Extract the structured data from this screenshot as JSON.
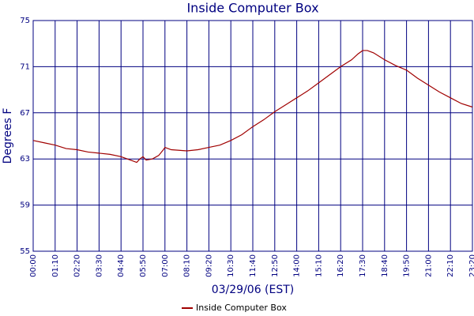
{
  "chart_data": {
    "type": "line",
    "title": "Inside Computer Box",
    "x_label": "03/29/06 (EST)",
    "y_label": "Degrees F",
    "x": [
      0,
      35,
      70,
      105,
      140,
      175,
      210,
      245,
      280,
      300,
      320,
      330,
      340,
      350,
      360,
      380,
      400,
      415,
      420,
      440,
      490,
      525,
      560,
      595,
      630,
      665,
      700,
      735,
      770,
      805,
      840,
      875,
      910,
      945,
      980,
      1015,
      1035,
      1050,
      1065,
      1085,
      1120,
      1155,
      1190,
      1225,
      1260,
      1295,
      1330,
      1365,
      1400
    ],
    "series": [
      {
        "name": "Inside Computer Box",
        "color": "#a00000",
        "values": [
          64.6,
          64.4,
          64.2,
          63.9,
          63.8,
          63.6,
          63.5,
          63.4,
          63.2,
          63.0,
          62.8,
          62.7,
          63.0,
          63.2,
          62.9,
          63.0,
          63.3,
          63.8,
          64.0,
          63.8,
          63.7,
          63.8,
          64.0,
          64.2,
          64.6,
          65.1,
          65.8,
          66.4,
          67.1,
          67.7,
          68.3,
          68.9,
          69.6,
          70.3,
          71.0,
          71.6,
          72.1,
          72.4,
          72.4,
          72.2,
          71.6,
          71.1,
          70.7,
          70.0,
          69.4,
          68.8,
          68.3,
          67.8,
          67.5
        ]
      }
    ],
    "xlim": [
      0,
      1400
    ],
    "xticks": [
      {
        "value": 0,
        "label": "00:00"
      },
      {
        "value": 70,
        "label": "01:10"
      },
      {
        "value": 140,
        "label": "02:20"
      },
      {
        "value": 210,
        "label": "03:30"
      },
      {
        "value": 280,
        "label": "04:40"
      },
      {
        "value": 350,
        "label": "05:50"
      },
      {
        "value": 420,
        "label": "07:00"
      },
      {
        "value": 490,
        "label": "08:10"
      },
      {
        "value": 560,
        "label": "09:20"
      },
      {
        "value": 630,
        "label": "10:30"
      },
      {
        "value": 700,
        "label": "11:40"
      },
      {
        "value": 770,
        "label": "12:50"
      },
      {
        "value": 840,
        "label": "14:00"
      },
      {
        "value": 910,
        "label": "15:10"
      },
      {
        "value": 980,
        "label": "16:20"
      },
      {
        "value": 1050,
        "label": "17:30"
      },
      {
        "value": 1120,
        "label": "18:40"
      },
      {
        "value": 1190,
        "label": "19:50"
      },
      {
        "value": 1260,
        "label": "21:00"
      },
      {
        "value": 1330,
        "label": "22:10"
      },
      {
        "value": 1400,
        "label": "23:20"
      }
    ],
    "ylim": [
      55,
      75
    ],
    "yticks": [
      55,
      59,
      63,
      67,
      71,
      75
    ],
    "grid": true,
    "grid_color": "#000080",
    "legend": "bottom"
  }
}
